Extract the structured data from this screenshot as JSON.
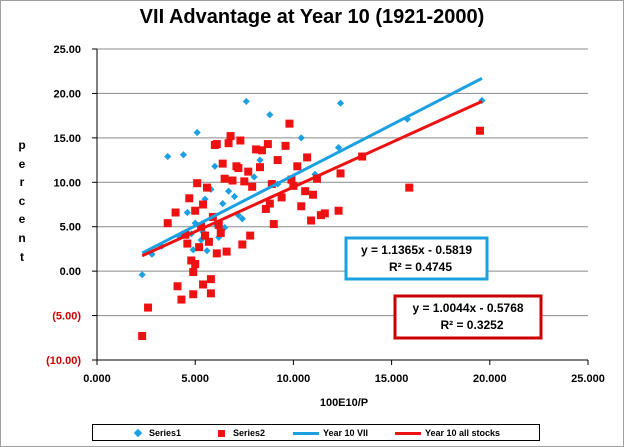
{
  "chart_data": {
    "type": "scatter",
    "title": "VII Advantage at Year 10 (1921-2000)",
    "xlabel": "100E10/P",
    "ylabel": "percent",
    "xlim": [
      0,
      25
    ],
    "ylim": [
      -10,
      25
    ],
    "x_ticks": [
      "0.000",
      "5.000",
      "10.000",
      "15.000",
      "20.000",
      "25.000"
    ],
    "y_ticks": [
      "(10.00)",
      "(5.00)",
      "0.00",
      "5.00",
      "10.00",
      "15.00",
      "20.00",
      "25.00"
    ],
    "y_tick_colors": [
      "#cc0000",
      "#cc0000",
      "#000000",
      "#000000",
      "#000000",
      "#000000",
      "#000000",
      "#000000"
    ],
    "grid": true,
    "legend_position": "bottom",
    "series": [
      {
        "name": "Series1",
        "marker": "diamond",
        "color": "#1ba1e2",
        "points": [
          [
            2.3,
            -0.4
          ],
          [
            3.6,
            12.9
          ],
          [
            4.4,
            13.1
          ],
          [
            5.1,
            15.6
          ],
          [
            5.4,
            4.4
          ],
          [
            6.0,
            11.8
          ],
          [
            7.6,
            19.1
          ],
          [
            8.8,
            17.6
          ],
          [
            10.4,
            15.0
          ],
          [
            12.4,
            18.9
          ],
          [
            15.8,
            17.1
          ],
          [
            19.6,
            19.2
          ],
          [
            8.3,
            12.5
          ],
          [
            6.4,
            7.6
          ],
          [
            5.8,
            9.2
          ],
          [
            4.8,
            4.2
          ],
          [
            4.9,
            2.4
          ],
          [
            5.3,
            3.5
          ],
          [
            5.6,
            2.3
          ],
          [
            6.1,
            5.1
          ],
          [
            6.5,
            4.9
          ],
          [
            7.2,
            6.3
          ],
          [
            7.4,
            5.9
          ],
          [
            4.2,
            3.9
          ],
          [
            3.3,
            2.8
          ],
          [
            2.8,
            1.9
          ],
          [
            5.0,
            5.4
          ],
          [
            5.5,
            8.1
          ],
          [
            6.7,
            9.0
          ],
          [
            8.0,
            10.6
          ],
          [
            9.2,
            9.8
          ],
          [
            11.1,
            10.9
          ],
          [
            12.3,
            13.9
          ],
          [
            4.6,
            6.6
          ],
          [
            6.2,
            3.8
          ],
          [
            7.0,
            8.4
          ]
        ]
      },
      {
        "name": "Series2",
        "marker": "square",
        "color": "#ee1111",
        "points": [
          [
            2.3,
            -7.3
          ],
          [
            2.6,
            -4.1
          ],
          [
            3.6,
            5.4
          ],
          [
            4.0,
            6.6
          ],
          [
            4.1,
            -1.7
          ],
          [
            4.3,
            -3.2
          ],
          [
            4.5,
            4.1
          ],
          [
            4.6,
            3.1
          ],
          [
            4.7,
            8.2
          ],
          [
            4.8,
            1.2
          ],
          [
            4.9,
            -0.1
          ],
          [
            4.9,
            -2.6
          ],
          [
            5.0,
            0.8
          ],
          [
            5.0,
            6.8
          ],
          [
            5.1,
            9.9
          ],
          [
            5.2,
            2.7
          ],
          [
            5.3,
            5.0
          ],
          [
            5.4,
            7.5
          ],
          [
            5.4,
            -1.5
          ],
          [
            5.5,
            4.0
          ],
          [
            5.6,
            9.4
          ],
          [
            5.7,
            3.3
          ],
          [
            5.8,
            -0.9
          ],
          [
            5.8,
            -2.5
          ],
          [
            5.9,
            6.1
          ],
          [
            6.0,
            14.2
          ],
          [
            6.1,
            2.0
          ],
          [
            6.2,
            5.2
          ],
          [
            6.3,
            4.3
          ],
          [
            6.4,
            12.1
          ],
          [
            6.5,
            10.4
          ],
          [
            6.6,
            2.2
          ],
          [
            6.7,
            14.4
          ],
          [
            6.8,
            15.2
          ],
          [
            6.9,
            10.2
          ],
          [
            7.1,
            11.8
          ],
          [
            7.3,
            14.7
          ],
          [
            7.4,
            3.0
          ],
          [
            7.5,
            10.1
          ],
          [
            7.7,
            11.2
          ],
          [
            7.8,
            4.0
          ],
          [
            7.9,
            9.5
          ],
          [
            8.1,
            13.7
          ],
          [
            8.3,
            11.7
          ],
          [
            8.4,
            13.6
          ],
          [
            8.6,
            7.0
          ],
          [
            8.7,
            14.3
          ],
          [
            8.8,
            7.6
          ],
          [
            8.9,
            9.8
          ],
          [
            9.0,
            5.3
          ],
          [
            9.2,
            12.5
          ],
          [
            9.4,
            8.3
          ],
          [
            9.6,
            14.1
          ],
          [
            9.8,
            16.6
          ],
          [
            9.9,
            10.3
          ],
          [
            10.0,
            9.6
          ],
          [
            10.2,
            11.8
          ],
          [
            10.4,
            7.3
          ],
          [
            10.6,
            9.0
          ],
          [
            10.7,
            12.8
          ],
          [
            10.9,
            5.7
          ],
          [
            11.2,
            10.4
          ],
          [
            11.4,
            6.3
          ],
          [
            11.6,
            6.5
          ],
          [
            12.3,
            6.8
          ],
          [
            12.4,
            11.0
          ],
          [
            13.5,
            12.9
          ],
          [
            15.9,
            9.4
          ],
          [
            19.5,
            15.8
          ],
          [
            7.2,
            11.6
          ],
          [
            6.1,
            14.3
          ],
          [
            11.0,
            8.6
          ]
        ]
      },
      {
        "name": "Year 10 VII",
        "type": "trendline",
        "color": "#1ba1e2",
        "slope": 1.1365,
        "intercept": -0.5819,
        "x_range": [
          2.3,
          19.6
        ]
      },
      {
        "name": "Year 10 all stocks",
        "type": "trendline",
        "color": "#ee1111",
        "slope": 1.0044,
        "intercept": -0.5768,
        "x_range": [
          2.3,
          19.6
        ]
      }
    ],
    "annotations": [
      {
        "color": "#1ba1e2",
        "equation": "y = 1.1365x - 0.5819",
        "r2": "R² = 0.4745"
      },
      {
        "color": "#cc0000",
        "equation": "y = 1.0044x - 0.5768",
        "r2": "R² = 0.3252"
      }
    ]
  }
}
